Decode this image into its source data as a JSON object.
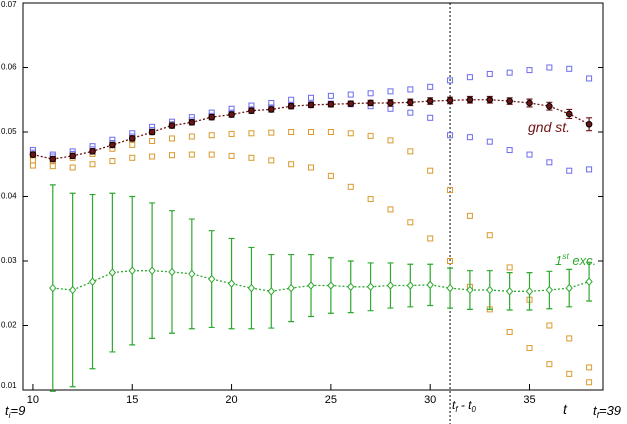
{
  "chart_data": {
    "type": "scatter",
    "xlim": [
      9.5,
      38.7
    ],
    "ylim": [
      0.01,
      0.07
    ],
    "xticks": [
      10,
      15,
      20,
      25,
      30,
      35
    ],
    "yticks": [
      0.01,
      0.02,
      0.03,
      0.04,
      0.05,
      0.06,
      0.07
    ],
    "vline": 31,
    "series": [
      {
        "color": "#6b6bf0",
        "marker": "square",
        "x": [
          10,
          11,
          12,
          13,
          14,
          15,
          16,
          17,
          18,
          19,
          20,
          21,
          22,
          23,
          24,
          25,
          26,
          27,
          28,
          29,
          30,
          31,
          32,
          33,
          34,
          35,
          36,
          37,
          38
        ],
        "values": [
          0.0472,
          0.0465,
          0.047,
          0.0478,
          0.0488,
          0.0498,
          0.0508,
          0.0516,
          0.0523,
          0.053,
          0.0536,
          0.0541,
          0.0545,
          0.055,
          0.0553,
          0.0556,
          0.0558,
          0.056,
          0.0563,
          0.0566,
          0.057,
          0.058,
          0.0585,
          0.059,
          0.0592,
          0.0596,
          0.06,
          0.0598,
          0.0583
        ]
      },
      {
        "color": "#6b6bf0",
        "marker": "square",
        "x": [
          10,
          11,
          12,
          13,
          14,
          15,
          16,
          17,
          18,
          19,
          20,
          21,
          22,
          23,
          24,
          25,
          26,
          27,
          28,
          29,
          30,
          31,
          32,
          33,
          34,
          35,
          36,
          37,
          38
        ],
        "values": [
          0.0468,
          0.0462,
          0.0466,
          0.0473,
          0.0483,
          0.0493,
          0.0503,
          0.0512,
          0.0518,
          0.0525,
          0.053,
          0.0535,
          0.0538,
          0.0541,
          0.0543,
          0.0544,
          0.0543,
          0.054,
          0.0536,
          0.053,
          0.0522,
          0.0495,
          0.0492,
          0.0485,
          0.0472,
          0.0465,
          0.0453,
          0.044,
          0.0442
        ]
      },
      {
        "color": "#d99a2b",
        "marker": "square",
        "x": [
          10,
          11,
          12,
          13,
          14,
          15,
          16,
          17,
          18,
          19,
          20,
          21,
          22,
          23,
          24,
          25,
          26,
          27,
          28,
          29,
          30,
          31,
          32,
          33,
          34,
          35,
          36,
          37,
          38
        ],
        "values": [
          0.0456,
          0.0455,
          0.046,
          0.0466,
          0.0474,
          0.048,
          0.0486,
          0.049,
          0.0493,
          0.0495,
          0.0497,
          0.0498,
          0.0499,
          0.05,
          0.05,
          0.05,
          0.0498,
          0.0494,
          0.0487,
          0.047,
          0.044,
          0.041,
          0.037,
          0.034,
          0.029,
          0.024,
          0.02,
          0.018,
          0.0112
        ]
      },
      {
        "color": "#d99a2b",
        "marker": "square",
        "x": [
          10,
          11,
          12,
          13,
          14,
          15,
          16,
          17,
          18,
          19,
          20,
          21,
          22,
          23,
          24,
          25,
          26,
          27,
          28,
          29,
          30,
          31,
          32,
          33,
          34,
          35,
          36,
          37,
          38
        ],
        "values": [
          0.0448,
          0.0447,
          0.0445,
          0.045,
          0.0455,
          0.046,
          0.0462,
          0.0464,
          0.0465,
          0.0465,
          0.0463,
          0.046,
          0.0456,
          0.045,
          0.0445,
          0.0432,
          0.0415,
          0.0396,
          0.038,
          0.036,
          0.0335,
          0.03,
          0.026,
          0.0225,
          0.019,
          0.0165,
          0.014,
          0.0125,
          0.0135
        ]
      },
      {
        "name": "gnd st.",
        "color": "#6e1414",
        "marker": "circle",
        "line": true,
        "x": [
          10,
          11,
          12,
          13,
          14,
          15,
          16,
          17,
          18,
          19,
          20,
          21,
          22,
          23,
          24,
          25,
          26,
          27,
          28,
          29,
          30,
          31,
          32,
          33,
          34,
          35,
          36,
          37,
          38
        ],
        "values": [
          0.0465,
          0.0458,
          0.0463,
          0.047,
          0.048,
          0.049,
          0.05,
          0.051,
          0.0515,
          0.0523,
          0.0527,
          0.0533,
          0.0535,
          0.054,
          0.0542,
          0.0543,
          0.0544,
          0.0545,
          0.0545,
          0.0546,
          0.0548,
          0.0549,
          0.055,
          0.055,
          0.0548,
          0.0545,
          0.054,
          0.0528,
          0.0512
        ],
        "errors": [
          0.0004,
          0.0004,
          0.0004,
          0.0004,
          0.0004,
          0.0004,
          0.0004,
          0.0004,
          0.0004,
          0.0004,
          0.0004,
          0.0004,
          0.0004,
          0.0004,
          0.0004,
          0.0004,
          0.0004,
          0.0004,
          0.0005,
          0.0005,
          0.0005,
          0.0005,
          0.0005,
          0.0005,
          0.0005,
          0.0006,
          0.0006,
          0.0007,
          0.001
        ]
      },
      {
        "name": "1st exc.",
        "color": "#2fa82f",
        "marker": "diamond",
        "line": true,
        "x": [
          11,
          12,
          13,
          14,
          15,
          16,
          17,
          18,
          19,
          20,
          21,
          22,
          23,
          24,
          25,
          26,
          27,
          28,
          29,
          30,
          31,
          32,
          33,
          34,
          35,
          36,
          37,
          38
        ],
        "values": [
          0.0258,
          0.0255,
          0.0268,
          0.0282,
          0.0285,
          0.0285,
          0.0283,
          0.028,
          0.0272,
          0.0265,
          0.0258,
          0.0253,
          0.0258,
          0.0262,
          0.0262,
          0.026,
          0.026,
          0.0262,
          0.0262,
          0.0263,
          0.0258,
          0.0255,
          0.0255,
          0.0253,
          0.0253,
          0.0255,
          0.0258,
          0.0268
        ],
        "errors": [
          0.016,
          0.015,
          0.0135,
          0.0123,
          0.0115,
          0.0105,
          0.0095,
          0.0085,
          0.0075,
          0.007,
          0.0063,
          0.0057,
          0.0052,
          0.0048,
          0.0043,
          0.004,
          0.0037,
          0.0035,
          0.0033,
          0.0032,
          0.0031,
          0.003,
          0.003,
          0.0029,
          0.0029,
          0.0029,
          0.0029,
          0.003
        ]
      }
    ],
    "annotations": [
      {
        "color": "#6e1414",
        "segments": [
          {
            "text": "gnd st."
          }
        ]
      },
      {
        "color": "#2fa82f",
        "segments": [
          {
            "text": "1"
          },
          {
            "text": "st",
            "shift": "sup"
          },
          {
            "text": " exc."
          }
        ]
      },
      {
        "color": "#000000",
        "segments": [
          {
            "text": "t"
          },
          {
            "text": "i",
            "shift": "sub"
          },
          {
            "text": "=9"
          }
        ]
      },
      {
        "color": "#000000",
        "segments": [
          {
            "text": "t"
          },
          {
            "text": "f",
            "shift": "sub"
          },
          {
            "text": " - t"
          },
          {
            "text": "0",
            "shift": "sub"
          }
        ]
      },
      {
        "color": "#000000",
        "segments": [
          {
            "text": "t"
          }
        ]
      },
      {
        "color": "#000000",
        "segments": [
          {
            "text": "t"
          },
          {
            "text": "f",
            "shift": "sub"
          },
          {
            "text": "=39"
          }
        ]
      }
    ]
  }
}
